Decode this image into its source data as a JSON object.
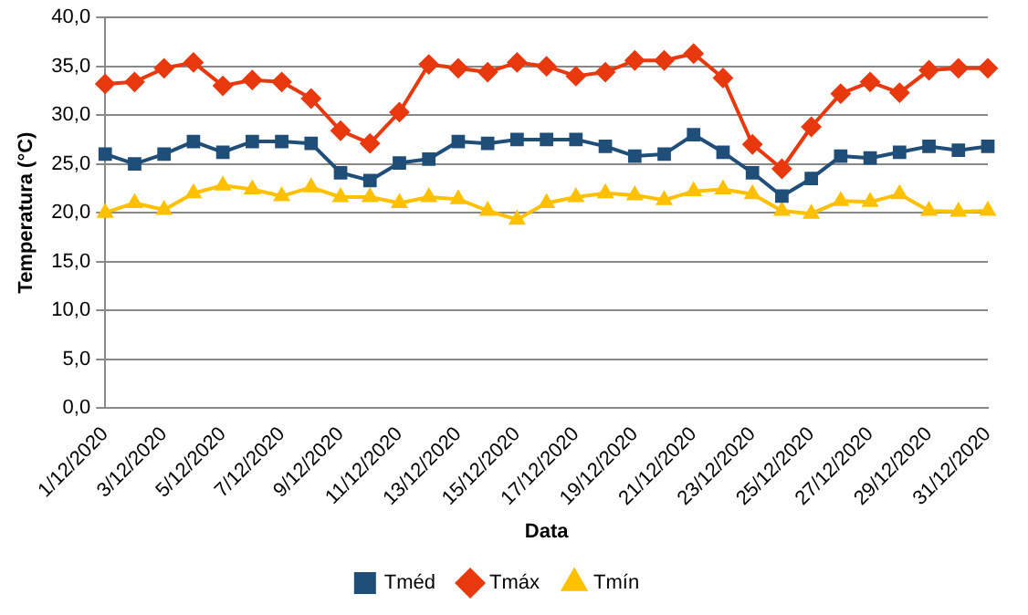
{
  "chart_data": {
    "type": "line",
    "xlabel": "Data",
    "ylabel": "Temperatura (°C)",
    "categories": [
      "1/12/2020",
      null,
      "3/12/2020",
      null,
      "5/12/2020",
      null,
      "7/12/2020",
      null,
      "9/12/2020",
      null,
      "11/12/2020",
      null,
      "13/12/2020",
      null,
      "15/12/2020",
      null,
      "17/12/2020",
      null,
      "19/12/2020",
      null,
      "21/12/2020",
      null,
      "23/12/2020",
      null,
      "25/12/2020",
      null,
      "27/12/2020",
      null,
      "29/12/2020",
      null,
      "31/12/2020"
    ],
    "series": [
      {
        "name": "Tméd",
        "color": "#1f4e79",
        "marker": "square",
        "values": [
          26.0,
          25.0,
          26.0,
          27.3,
          26.2,
          27.3,
          27.3,
          27.1,
          24.1,
          23.3,
          25.1,
          25.5,
          27.3,
          27.1,
          27.5,
          27.5,
          27.5,
          26.8,
          25.8,
          26.0,
          28.0,
          26.2,
          24.1,
          21.7,
          23.5,
          25.8,
          25.6,
          26.2,
          26.8,
          26.4,
          26.8
        ]
      },
      {
        "name": "Tmáx",
        "color": "#e8380d",
        "marker": "diamond",
        "values": [
          33.2,
          33.4,
          34.8,
          35.4,
          33.0,
          33.6,
          33.4,
          31.7,
          28.4,
          27.1,
          30.3,
          35.2,
          34.8,
          34.4,
          35.4,
          35.0,
          34.0,
          34.4,
          35.6,
          35.6,
          36.3,
          33.8,
          27.0,
          24.5,
          28.8,
          32.2,
          33.4,
          32.3,
          34.6,
          34.8,
          34.8
        ]
      },
      {
        "name": "Tmín",
        "color": "#ffc000",
        "marker": "triangle",
        "values": [
          20.0,
          21.0,
          20.3,
          22.0,
          22.8,
          22.4,
          21.7,
          22.6,
          21.6,
          21.6,
          21.0,
          21.6,
          21.4,
          20.2,
          19.3,
          21.0,
          21.6,
          22.0,
          21.8,
          21.3,
          22.2,
          22.4,
          21.9,
          20.2,
          19.9,
          21.2,
          21.1,
          21.9,
          20.2,
          20.1,
          20.2
        ]
      }
    ],
    "ylim": [
      0,
      40
    ],
    "yticks": [
      {
        "value": 0,
        "label": "0,0"
      },
      {
        "value": 5,
        "label": "5,0"
      },
      {
        "value": 10,
        "label": "10,0"
      },
      {
        "value": 15,
        "label": "15,0"
      },
      {
        "value": 20,
        "label": "20,0"
      },
      {
        "value": 25,
        "label": "25,0"
      },
      {
        "value": 30,
        "label": "30,0"
      },
      {
        "value": 35,
        "label": "35,0"
      },
      {
        "value": 40,
        "label": "40,0"
      }
    ],
    "grid": "y",
    "legend": "bottom",
    "line_style": "solid"
  }
}
